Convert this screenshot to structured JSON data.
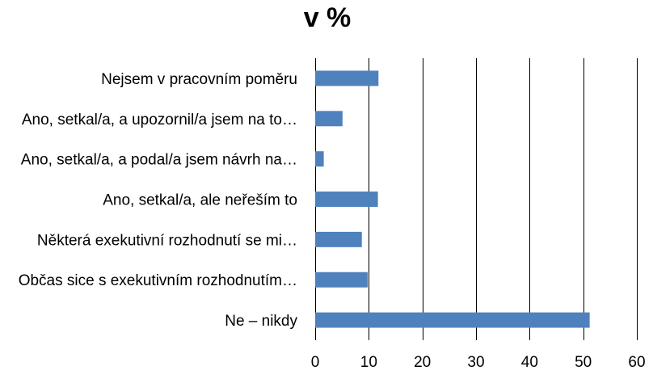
{
  "chart_data": {
    "type": "bar",
    "orientation": "horizontal",
    "title": "v %",
    "categories": [
      "Nejsem v pracovním poměru",
      "Ano, setkal/a, a upozornil/a jsem na to…",
      "Ano, setkal/a, a podal/a jsem návrh na…",
      "Ano, setkal/a, ale neřeším to",
      "Některá exekutivní rozhodnutí se mi…",
      "Občas sice s exekutivním rozhodnutím…",
      "Ne – nikdy"
    ],
    "values": [
      11.8,
      5.1,
      1.6,
      11.7,
      8.7,
      9.8,
      51.2
    ],
    "xlim": [
      0,
      60
    ],
    "xticks": [
      0,
      10,
      20,
      30,
      40,
      50,
      60
    ],
    "xlabel": "",
    "ylabel": "",
    "grid": "vertical",
    "legend": "none",
    "bar_color": "#4F81BD"
  }
}
